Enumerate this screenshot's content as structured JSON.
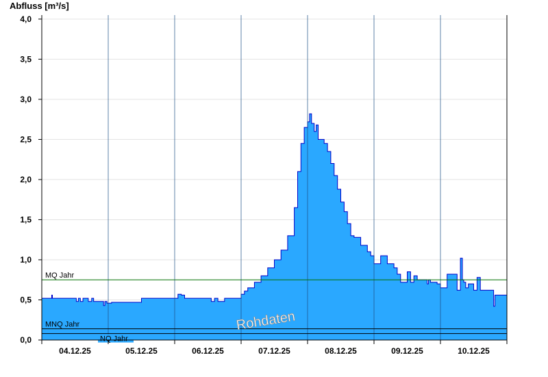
{
  "chart_data": {
    "type": "area",
    "ylabel": "Abfluss [m³/s]",
    "ylim": [
      0,
      4.05
    ],
    "yticks": [
      {
        "value": 0.0,
        "label": "0,0"
      },
      {
        "value": 0.5,
        "label": "0,5"
      },
      {
        "value": 1.0,
        "label": "1,0"
      },
      {
        "value": 1.5,
        "label": "1,5"
      },
      {
        "value": 2.0,
        "label": "2,0"
      },
      {
        "value": 2.5,
        "label": "2,5"
      },
      {
        "value": 3.0,
        "label": "3,0"
      },
      {
        "value": 3.5,
        "label": "3,5"
      },
      {
        "value": 4.0,
        "label": "4,0"
      }
    ],
    "xlim_days": [
      0,
      7
    ],
    "day_boundaries": [
      1,
      2,
      3,
      4,
      5,
      6
    ],
    "xticks": [
      "04.12.25",
      "05.12.25",
      "06.12.25",
      "07.12.25",
      "08.12.25",
      "09.12.25",
      "10.12.25"
    ],
    "grid": "horizontal",
    "fill_color": "#2aa8ff",
    "line_color": "#0000c8",
    "reference_lines": [
      {
        "label": "MQ Jahr",
        "value": 0.75,
        "color": "#007000"
      },
      {
        "label": "MNQ Jahr",
        "value": 0.14,
        "color": "#000000"
      },
      {
        "label": "NQ Jahr",
        "value": 0.08,
        "color": "#000000"
      }
    ],
    "watermark": "Rohdaten",
    "series": [
      {
        "x": [
          0,
          0.1,
          0.15,
          0.16,
          0.2,
          0.5,
          0.52,
          0.55,
          0.58,
          0.62,
          0.7,
          0.75,
          0.78,
          0.9,
          0.93,
          0.95,
          0.98,
          1.0,
          1.05,
          1.3,
          1.4,
          1.5,
          1.6,
          1.9,
          2.0,
          2.05,
          2.1,
          2.15,
          2.2,
          2.5,
          2.55,
          2.6,
          2.65,
          2.75,
          2.8,
          3.0,
          3.05,
          3.1,
          3.2,
          3.3,
          3.4,
          3.5,
          3.6,
          3.7,
          3.8,
          3.85,
          3.9,
          3.95,
          4.0,
          4.03,
          4.06,
          4.1,
          4.13,
          4.16,
          4.2,
          4.25,
          4.3,
          4.35,
          4.4,
          4.45,
          4.5,
          4.55,
          4.6,
          4.65,
          4.7,
          4.8,
          4.9,
          4.95,
          5.0,
          5.1,
          5.2,
          5.3,
          5.35,
          5.4,
          5.5,
          5.55,
          5.6,
          5.65,
          5.75,
          5.8,
          5.82,
          5.85,
          5.95,
          6.0,
          6.1,
          6.25,
          6.3,
          6.33,
          6.35,
          6.38,
          6.42,
          6.5,
          6.55,
          6.6,
          6.65,
          6.75,
          6.8,
          6.82,
          6.85,
          6.9,
          7.0
        ],
        "values": [
          0.52,
          0.52,
          0.56,
          0.52,
          0.52,
          0.52,
          0.48,
          0.52,
          0.48,
          0.52,
          0.48,
          0.52,
          0.48,
          0.48,
          0.43,
          0.48,
          0.46,
          0.46,
          0.47,
          0.47,
          0.47,
          0.52,
          0.52,
          0.52,
          0.52,
          0.57,
          0.56,
          0.52,
          0.52,
          0.52,
          0.48,
          0.52,
          0.48,
          0.52,
          0.52,
          0.57,
          0.61,
          0.65,
          0.72,
          0.8,
          0.9,
          1.0,
          1.12,
          1.3,
          1.65,
          2.1,
          2.45,
          2.65,
          2.72,
          2.82,
          2.7,
          2.6,
          2.68,
          2.5,
          2.5,
          2.45,
          2.35,
          2.2,
          2.05,
          1.88,
          1.72,
          1.6,
          1.45,
          1.3,
          1.28,
          1.18,
          1.1,
          1.05,
          0.95,
          1.05,
          0.95,
          0.9,
          0.82,
          0.72,
          0.85,
          0.72,
          0.8,
          0.75,
          0.75,
          0.7,
          0.75,
          0.72,
          0.7,
          0.65,
          0.82,
          0.62,
          1.02,
          0.75,
          0.72,
          0.65,
          0.7,
          0.62,
          0.78,
          0.62,
          0.62,
          0.62,
          0.42,
          0.56,
          0.56,
          0.56,
          0.56
        ]
      }
    ]
  }
}
